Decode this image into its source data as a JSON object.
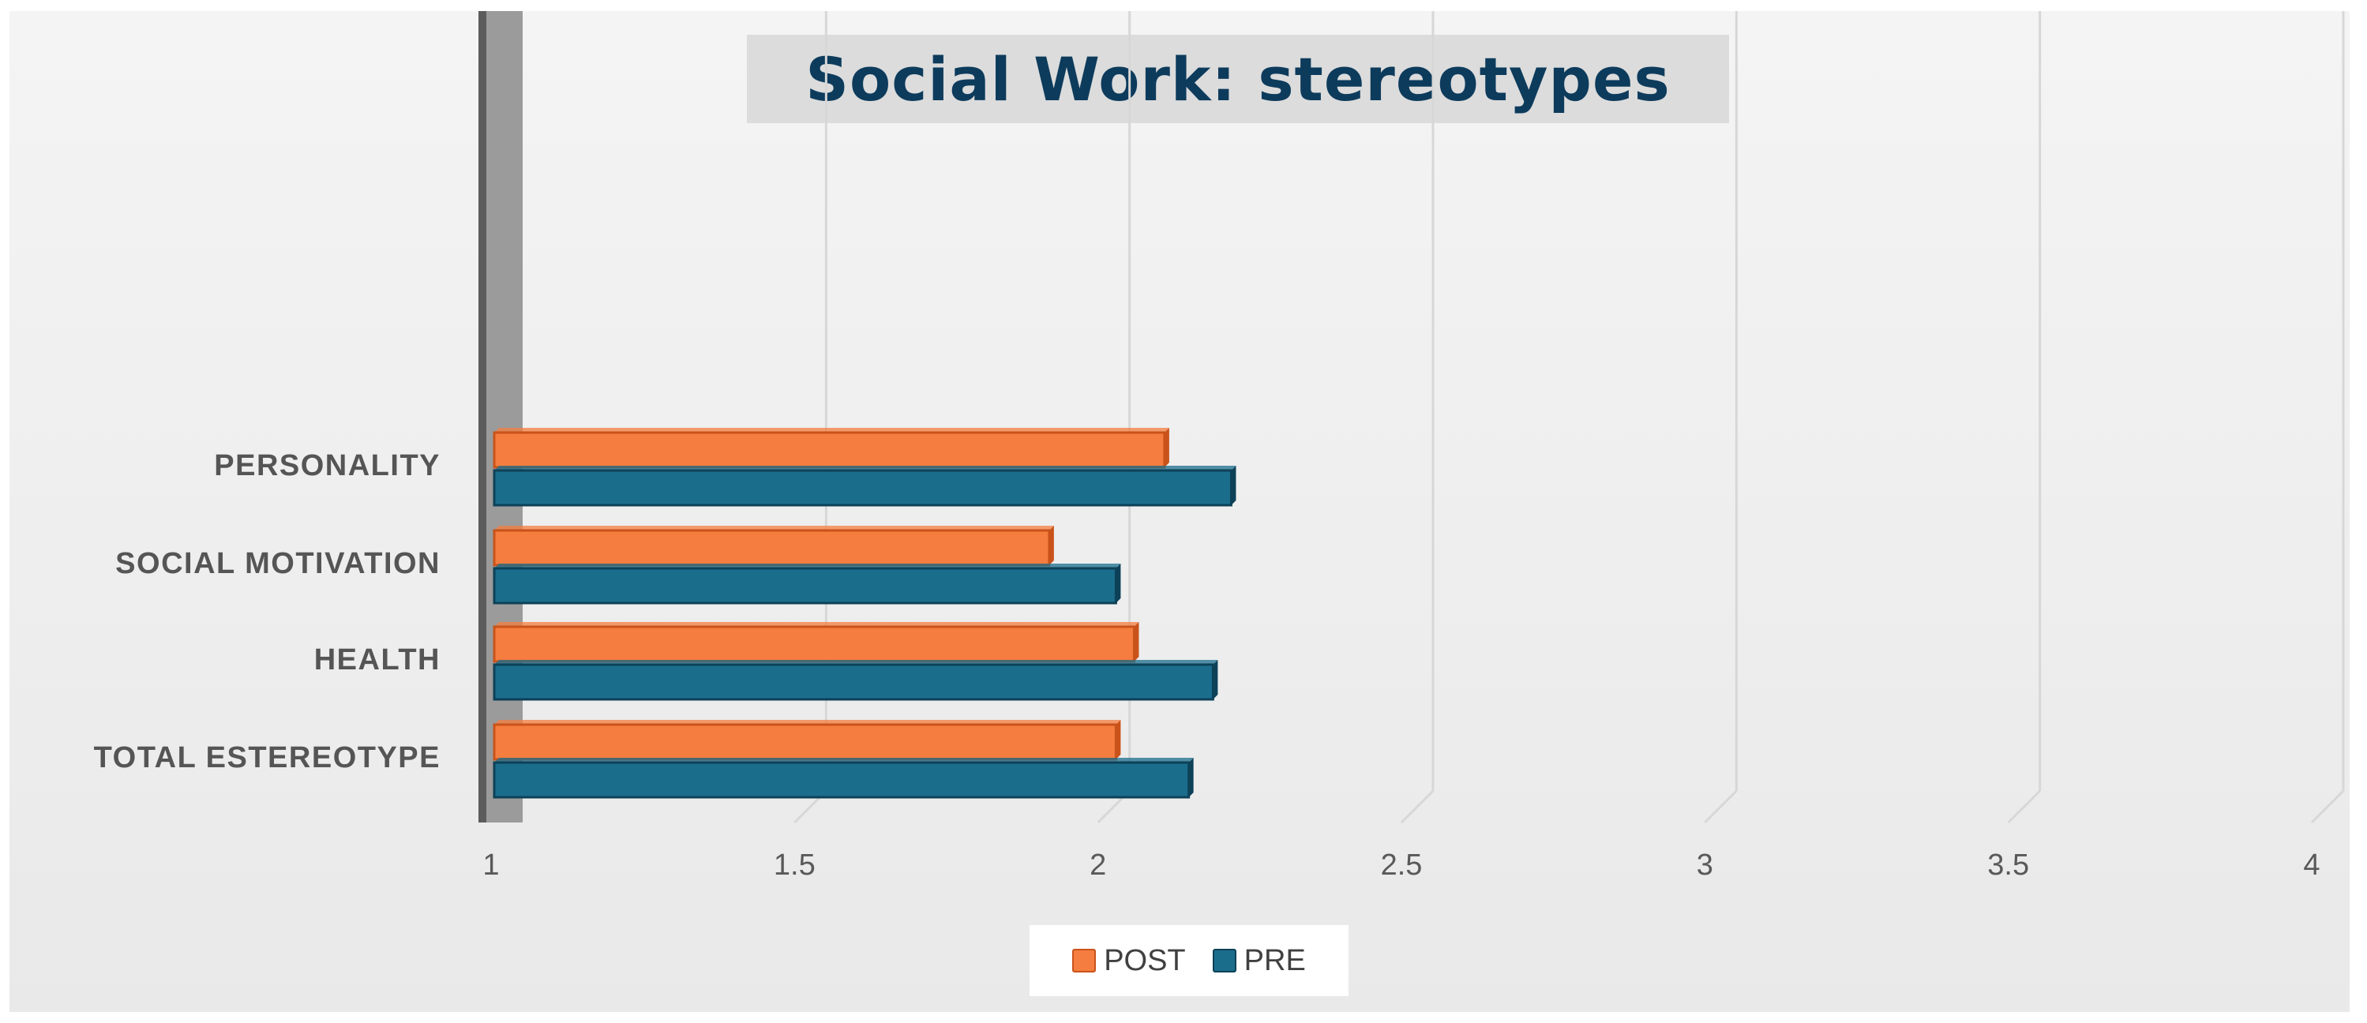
{
  "chart_data": {
    "type": "bar",
    "orientation": "horizontal",
    "style": "3d-clustered",
    "title": "Social Work: stereotypes",
    "categories": [
      "PERSONALITY",
      "SOCIAL MOTIVATION",
      "HEALTH",
      "TOTAL ESTEREOTYPE"
    ],
    "series": [
      {
        "name": "POST",
        "color": "#f47d3f",
        "edge": "#c9531a",
        "values": [
          2.12,
          1.93,
          2.07,
          2.04
        ]
      },
      {
        "name": "PRE",
        "color": "#1b6d8c",
        "edge": "#0c4158",
        "values": [
          2.23,
          2.04,
          2.2,
          2.16
        ]
      }
    ],
    "xlim": [
      1,
      4
    ],
    "xticks": [
      "1",
      "1.5",
      "2",
      "2.5",
      "3",
      "3.5",
      "4"
    ],
    "xtick_values": [
      1,
      1.5,
      2,
      2.5,
      3,
      3.5,
      4
    ],
    "grid": true,
    "legend_position": "bottom"
  }
}
